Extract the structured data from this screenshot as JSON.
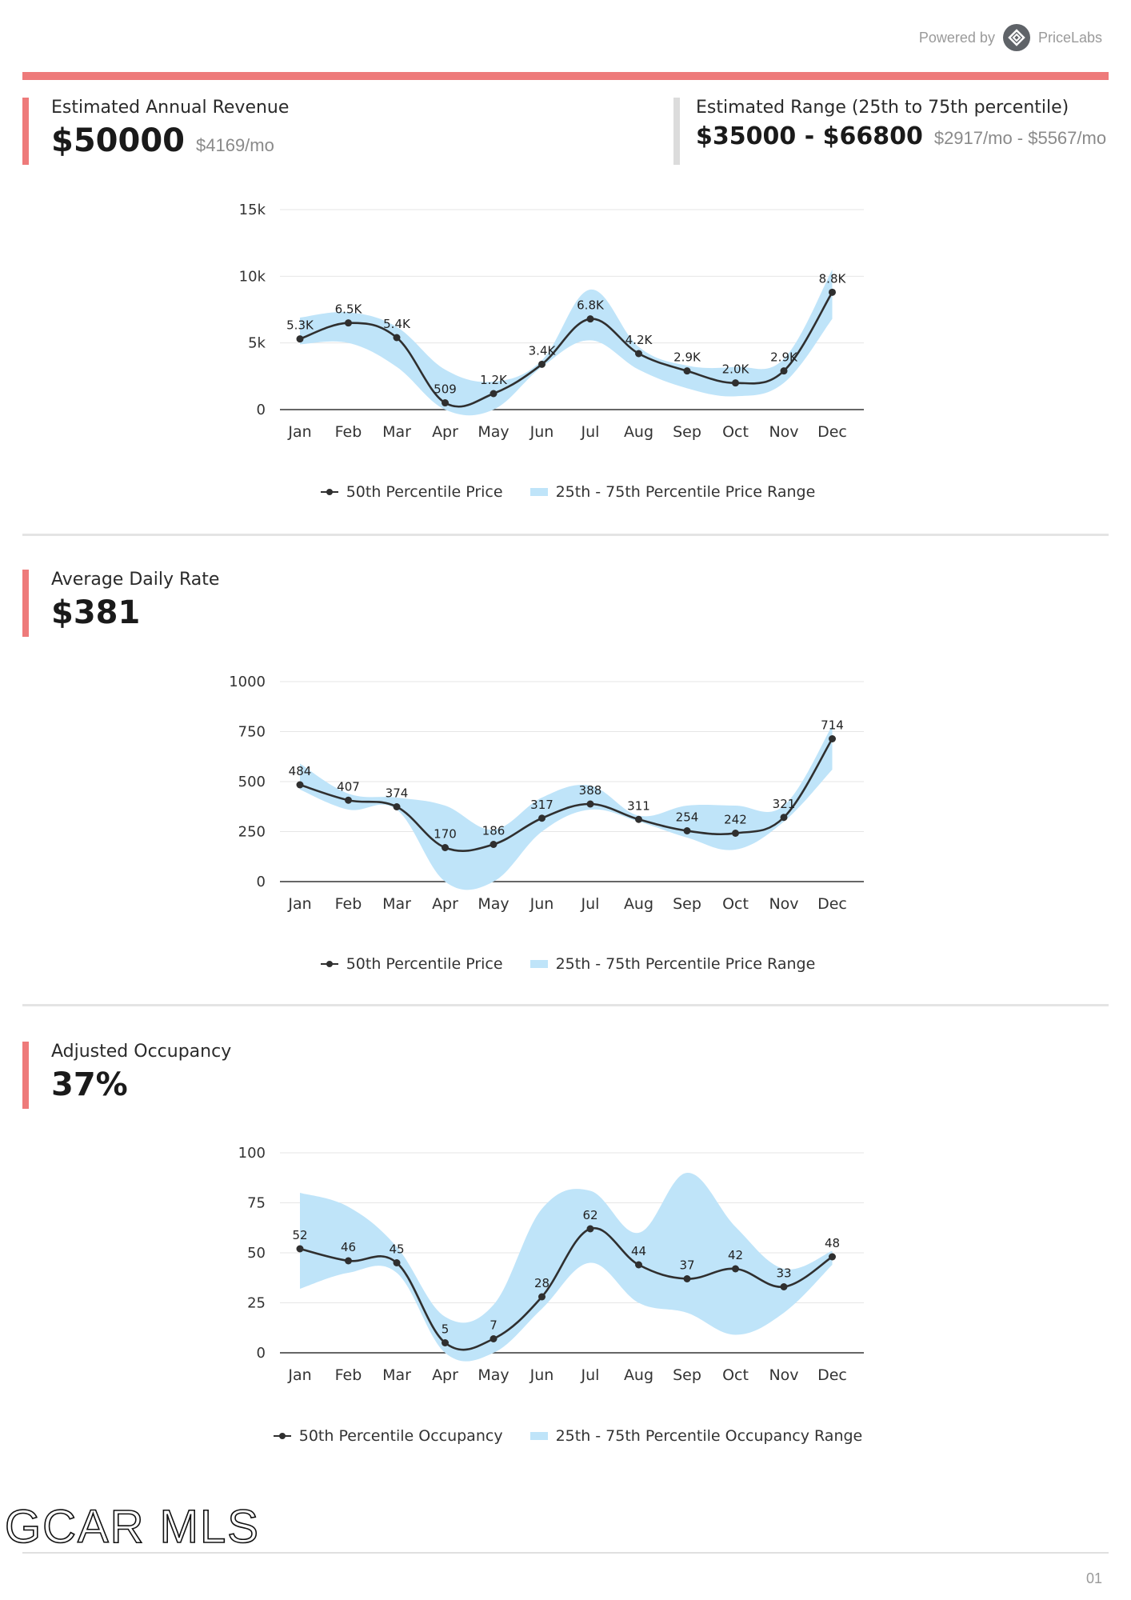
{
  "header": {
    "powered_by": "Powered by",
    "brand": "PriceLabs",
    "brand_icon": "pricelabs-logo-icon"
  },
  "revenue": {
    "label": "Estimated Annual Revenue",
    "value": "$50000",
    "monthly": "$4169/mo",
    "range_label": "Estimated Range (25th to 75th percentile)",
    "range_value": "$35000 - $66800",
    "range_monthly": "$2917/mo - $5567/mo"
  },
  "adr": {
    "label": "Average Daily Rate",
    "value": "$381"
  },
  "occupancy": {
    "label": "Adjusted Occupancy",
    "value": "37%"
  },
  "footer": {
    "logo": "GCAR MLS",
    "page": "01"
  },
  "colors": {
    "accent": "#ee7a7a",
    "band": "#bfe4f9",
    "line": "#2f2f2f",
    "grid": "#e6e6e6"
  },
  "chart_data": [
    {
      "type": "line",
      "categories": [
        "Jan",
        "Feb",
        "Mar",
        "Apr",
        "May",
        "Jun",
        "Jul",
        "Aug",
        "Sep",
        "Oct",
        "Nov",
        "Dec"
      ],
      "series": [
        {
          "name": "50th Percentile Price",
          "values": [
            5300,
            6500,
            5400,
            509,
            1200,
            3400,
            6800,
            4200,
            2900,
            2000,
            2900,
            8800
          ],
          "labels": [
            "5.3K",
            "6.5K",
            "5.4K",
            "509",
            "1.2K",
            "3.4K",
            "6.8K",
            "4.2K",
            "2.9K",
            "2.0K",
            "2.9K",
            "8.8K"
          ]
        },
        {
          "name": "25th - 75th Percentile Price Range",
          "type": "area",
          "low": [
            4900,
            5000,
            3200,
            0,
            0,
            3200,
            5200,
            3000,
            1600,
            1000,
            2000,
            6800
          ],
          "high": [
            6900,
            7300,
            6200,
            3000,
            2100,
            3700,
            9000,
            4700,
            3300,
            3200,
            3800,
            10500
          ]
        }
      ],
      "yticks": [
        "0",
        "5k",
        "10k",
        "15k"
      ],
      "ylim": [
        0,
        15000
      ],
      "legend": [
        "50th Percentile Price",
        "25th - 75th Percentile Price Range"
      ]
    },
    {
      "type": "line",
      "categories": [
        "Jan",
        "Feb",
        "Mar",
        "Apr",
        "May",
        "Jun",
        "Jul",
        "Aug",
        "Sep",
        "Oct",
        "Nov",
        "Dec"
      ],
      "series": [
        {
          "name": "50th Percentile Price",
          "values": [
            484,
            407,
            374,
            170,
            186,
            317,
            388,
            311,
            254,
            242,
            321,
            714
          ],
          "labels": [
            "484",
            "407",
            "374",
            "170",
            "186",
            "317",
            "388",
            "311",
            "254",
            "242",
            "321",
            "714"
          ]
        },
        {
          "name": "25th - 75th Percentile Price Range",
          "type": "area",
          "low": [
            460,
            360,
            360,
            0,
            0,
            250,
            360,
            300,
            220,
            160,
            300,
            560
          ],
          "high": [
            590,
            440,
            420,
            380,
            260,
            420,
            480,
            330,
            380,
            380,
            380,
            780
          ]
        }
      ],
      "yticks": [
        "0",
        "250",
        "500",
        "750",
        "1000"
      ],
      "ylim": [
        0,
        1000
      ],
      "legend": [
        "50th Percentile Price",
        "25th - 75th Percentile Price Range"
      ]
    },
    {
      "type": "line",
      "categories": [
        "Jan",
        "Feb",
        "Mar",
        "Apr",
        "May",
        "Jun",
        "Jul",
        "Aug",
        "Sep",
        "Oct",
        "Nov",
        "Dec"
      ],
      "series": [
        {
          "name": "50th Percentile Occupancy",
          "values": [
            52,
            46,
            45,
            5,
            7,
            28,
            62,
            44,
            37,
            42,
            33,
            48
          ],
          "labels": [
            "52",
            "46",
            "45",
            "5",
            "7",
            "28",
            "62",
            "44",
            "37",
            "42",
            "33",
            "48"
          ]
        },
        {
          "name": "25th - 75th Percentile Occupancy Range",
          "type": "area",
          "low": [
            32,
            40,
            40,
            0,
            0,
            22,
            45,
            25,
            20,
            9,
            20,
            44
          ],
          "high": [
            80,
            73,
            53,
            18,
            24,
            72,
            81,
            60,
            90,
            63,
            42,
            51
          ]
        }
      ],
      "yticks": [
        "0",
        "25",
        "50",
        "75",
        "100"
      ],
      "ylim": [
        0,
        100
      ],
      "legend": [
        "50th Percentile Occupancy",
        "25th - 75th Percentile Occupancy Range"
      ]
    }
  ]
}
